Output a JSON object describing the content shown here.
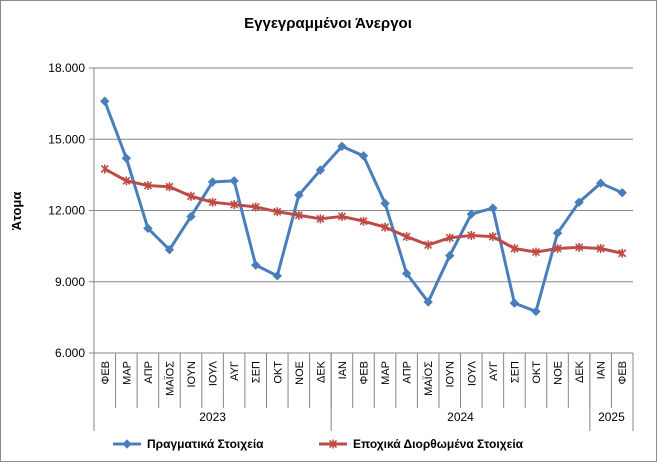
{
  "chart_data": {
    "type": "line",
    "title": "Εγγεγραμμένοι Άνεργοι",
    "ylabel": "Άτομα",
    "xlabel": "",
    "ylim": [
      6000,
      18000
    ],
    "yticks": [
      "6.000",
      "9.000",
      "12.000",
      "15.000",
      "18.000"
    ],
    "ytick_values": [
      6000,
      9000,
      12000,
      15000,
      18000
    ],
    "grid": true,
    "legend": "bottom",
    "categories": [
      "ΦΕΒ",
      "ΜΑΡ",
      "ΑΠΡ",
      "ΜΑΪΟΣ",
      "ΙΟΥΝ",
      "ΙΟΥΛ",
      "ΑΥΓ",
      "ΣΕΠ",
      "ΟΚΤ",
      "ΝΟΕ",
      "ΔΕΚ",
      "ΙΑΝ",
      "ΦΕΒ",
      "ΜΑΡ",
      "ΑΠΡ",
      "ΜΑΪΟΣ",
      "ΙΟΥΝ",
      "ΙΟΥΛ",
      "ΑΥΓ",
      "ΣΕΠ",
      "ΟΚΤ",
      "ΝΟΕ",
      "ΔΕΚ",
      "ΙΑΝ",
      "ΦΕΒ"
    ],
    "years": [
      {
        "label": "2023",
        "start": 0,
        "end": 10
      },
      {
        "label": "2024",
        "start": 11,
        "end": 22
      },
      {
        "label": "2025",
        "start": 23,
        "end": 24
      }
    ],
    "series": [
      {
        "name": "Πραγματικά Στοιχεία",
        "color": "#4A7EBB",
        "marker": "diamond",
        "values": [
          16600,
          14200,
          11250,
          10350,
          11750,
          13200,
          13250,
          9700,
          9250,
          12650,
          13700,
          14700,
          14300,
          12300,
          9350,
          8150,
          10100,
          11850,
          12100,
          8100,
          7750,
          11050,
          12350,
          13150,
          12750
        ]
      },
      {
        "name": "Εποχικά Διορθωμένα Στοιχεία",
        "color": "#BE4B48",
        "marker": "star",
        "values": [
          13750,
          13250,
          13050,
          13000,
          12600,
          12350,
          12250,
          12150,
          11950,
          11800,
          11650,
          11750,
          11550,
          11300,
          10900,
          10550,
          10850,
          10950,
          10900,
          10400,
          10250,
          10400,
          10450,
          10400,
          10200
        ]
      }
    ]
  }
}
